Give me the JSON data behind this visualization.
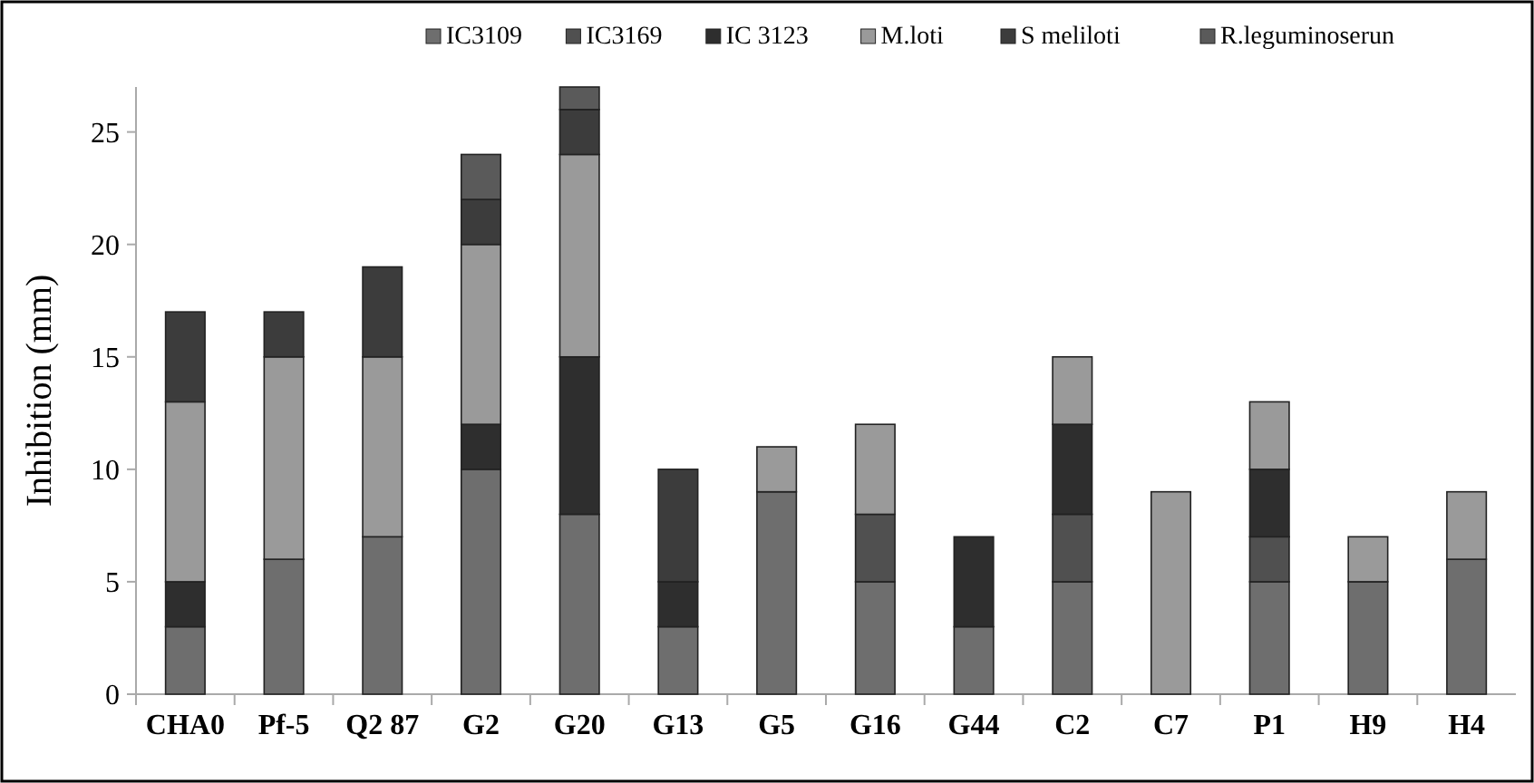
{
  "chart_data": {
    "type": "bar",
    "stacked": true,
    "ylabel": "Inhibition (mm)",
    "categories": [
      "CHA0",
      "Pf-5",
      "Q2 87",
      "G2",
      "G20",
      "G13",
      "G5",
      "G16",
      "G44",
      "C2",
      "C7",
      "P1",
      "H9",
      "H4"
    ],
    "series": [
      {
        "name": "IC3109",
        "color": "#6e6e6e",
        "values": [
          3,
          6,
          7,
          10,
          8,
          3,
          9,
          5,
          3,
          5,
          0,
          5,
          5,
          6
        ]
      },
      {
        "name": "IC3169",
        "color": "#505050",
        "values": [
          0,
          0,
          0,
          0,
          0,
          0,
          0,
          3,
          0,
          3,
          0,
          2,
          0,
          0
        ]
      },
      {
        "name": "IC 3123",
        "color": "#2e2e2e",
        "values": [
          2,
          0,
          0,
          2,
          7,
          2,
          0,
          0,
          4,
          4,
          0,
          3,
          0,
          0
        ]
      },
      {
        "name": "M.loti",
        "color": "#9a9a9a",
        "values": [
          8,
          9,
          8,
          8,
          9,
          0,
          2,
          4,
          0,
          3,
          9,
          3,
          2,
          3
        ]
      },
      {
        "name": "S meliloti",
        "color": "#3c3c3c",
        "values": [
          4,
          2,
          4,
          2,
          2,
          5,
          0,
          0,
          0,
          0,
          0,
          0,
          0,
          0
        ]
      },
      {
        "name": "R.leguminoserun",
        "color": "#5a5a5a",
        "values": [
          0,
          0,
          0,
          2,
          1,
          0,
          0,
          0,
          0,
          0,
          0,
          0,
          0,
          0
        ]
      }
    ],
    "ylim": [
      0,
      27
    ],
    "yticks": [
      0,
      5,
      10,
      15,
      20,
      25
    ],
    "legend": "top",
    "grid": false
  }
}
